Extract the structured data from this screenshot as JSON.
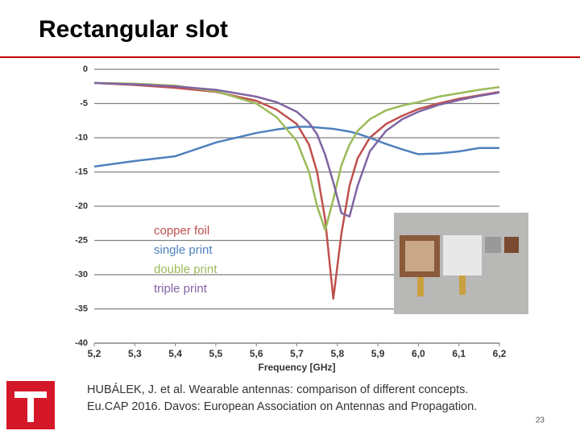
{
  "title": "Rectangular slot",
  "chart_data": {
    "type": "line",
    "xlabel": "Frequency [GHz]",
    "x": [
      5.2,
      5.3,
      5.4,
      5.5,
      5.6,
      5.65,
      5.7,
      5.73,
      5.75,
      5.77,
      5.79,
      5.81,
      5.83,
      5.85,
      5.88,
      5.92,
      5.96,
      6.0,
      6.05,
      6.1,
      6.15,
      6.2
    ],
    "series": [
      {
        "name": "copper foil",
        "color": "#c0504d",
        "values": [
          -2.0,
          -2.3,
          -2.7,
          -3.3,
          -4.6,
          -5.9,
          -8.0,
          -11,
          -15,
          -22,
          -33.5,
          -24,
          -17,
          -13,
          -10,
          -8,
          -6.8,
          -5.8,
          -5.0,
          -4.3,
          -3.8,
          -3.3
        ]
      },
      {
        "name": "single print",
        "color": "#4f81bd",
        "values": [
          -14.2,
          -13.4,
          -12.7,
          -10.7,
          -9.3,
          -8.8,
          -8.4,
          -8.4,
          -8.5,
          -8.6,
          -8.7,
          -8.9,
          -9.1,
          -9.4,
          -10,
          -10.9,
          -11.7,
          -12.4,
          -12.3,
          -12.0,
          -11.5,
          -11.5
        ]
      },
      {
        "name": "double print",
        "color": "#9bbb59",
        "values": [
          -2.0,
          -2.1,
          -2.4,
          -3.2,
          -5.0,
          -7.0,
          -10.5,
          -15,
          -20,
          -23.5,
          -19,
          -14,
          -11,
          -9,
          -7.3,
          -6,
          -5.3,
          -4.8,
          -4.0,
          -3.5,
          -3.0,
          -2.6
        ]
      },
      {
        "name": "triple print",
        "color": "#8064a2",
        "values": [
          -2.0,
          -2.2,
          -2.5,
          -3.0,
          -4.0,
          -4.8,
          -6.2,
          -7.8,
          -9.5,
          -12.5,
          -16.5,
          -21,
          -21.5,
          -17,
          -12,
          -9,
          -7.3,
          -6.2,
          -5.2,
          -4.5,
          -3.9,
          -3.4
        ]
      }
    ],
    "xlim": [
      5.2,
      6.2
    ],
    "xticks": [
      {
        "value": 5.2,
        "label": "5,2"
      },
      {
        "value": 5.3,
        "label": "5,3"
      },
      {
        "value": 5.4,
        "label": "5,4"
      },
      {
        "value": 5.5,
        "label": "5,5"
      },
      {
        "value": 5.6,
        "label": "5,6"
      },
      {
        "value": 5.7,
        "label": "5,7"
      },
      {
        "value": 5.8,
        "label": "5,8"
      },
      {
        "value": 5.9,
        "label": "5,9"
      },
      {
        "value": 6.0,
        "label": "6,0"
      },
      {
        "value": 6.1,
        "label": "6,1"
      },
      {
        "value": 6.2,
        "label": "6,2"
      }
    ],
    "ylim": [
      -40,
      0
    ],
    "yticks": [
      0,
      -5,
      -10,
      -15,
      -20,
      -25,
      -30,
      -35,
      -40
    ],
    "grid": true
  },
  "citation": [
    "HUBÁLEK, J. et al. Wearable antennas: comparison of different concepts.",
    "Eu.CAP 2016. Davos: European Association on Antennas and Propagation."
  ],
  "page_number": "23"
}
